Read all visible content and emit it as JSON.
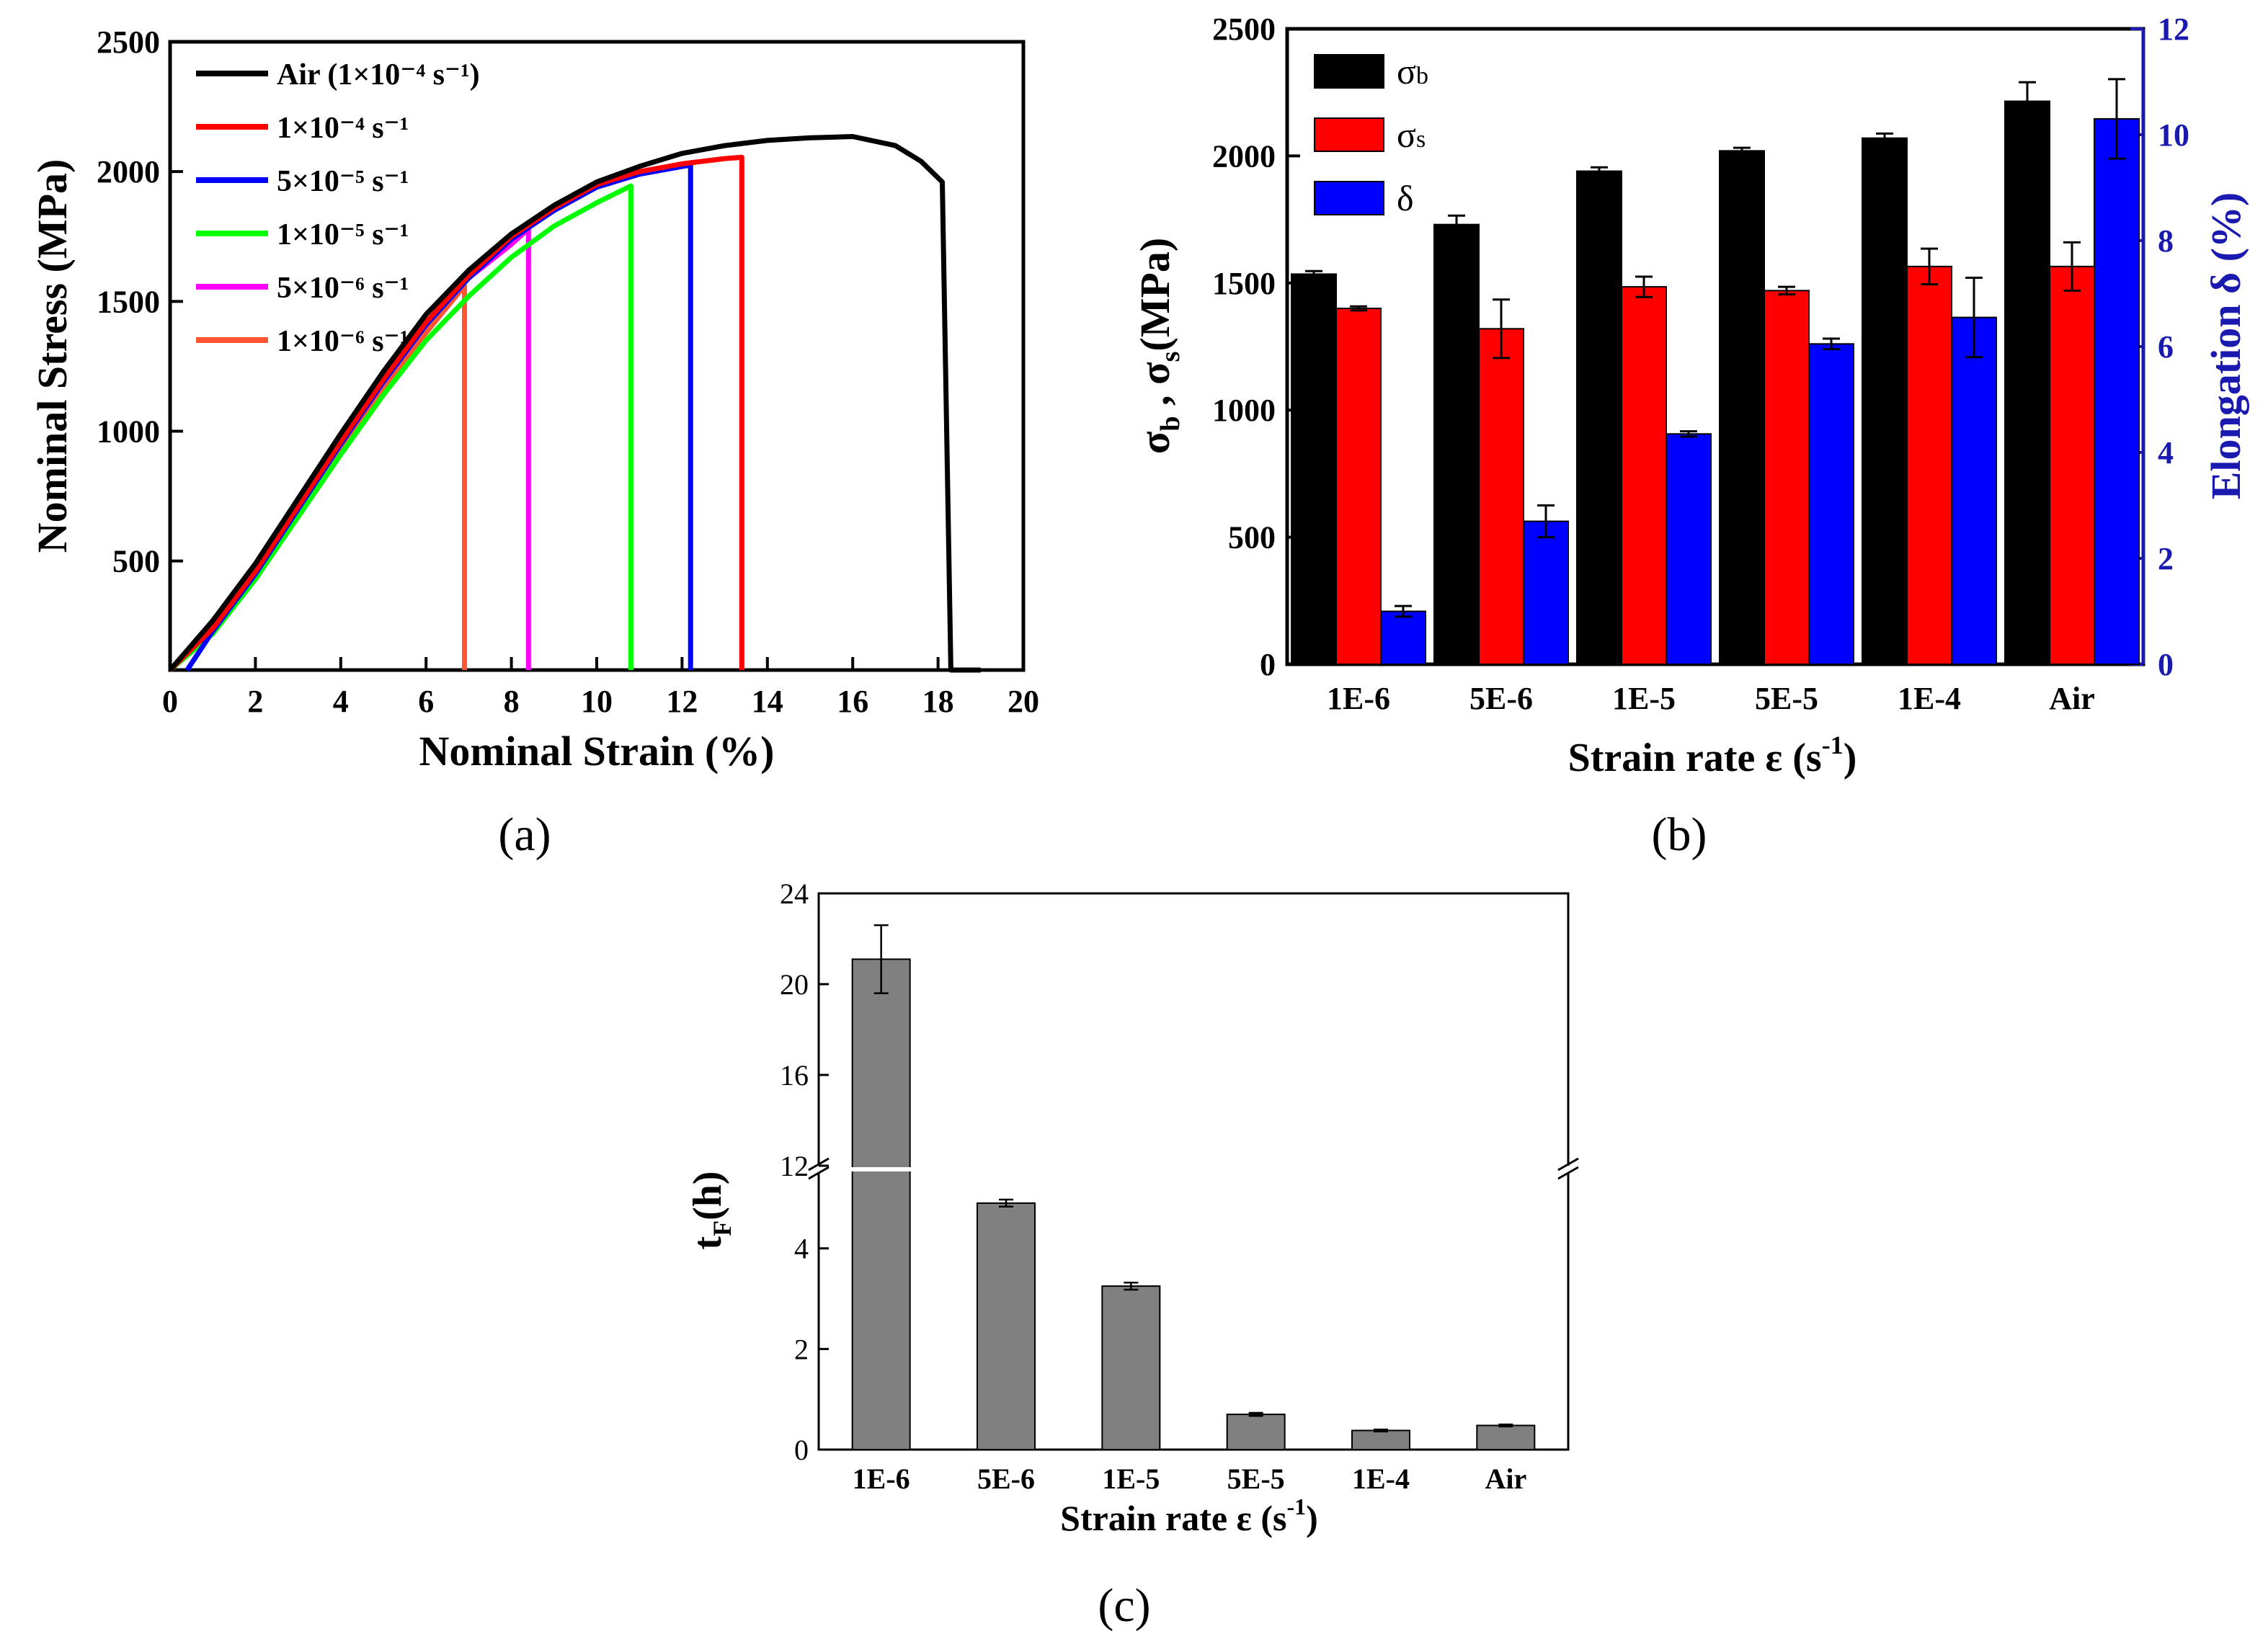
{
  "chart_data": [
    {
      "panel": "(a)",
      "type": "line",
      "xlabel": "Nominal Strain (%)",
      "ylabel": "Nominal Stress (MPa)",
      "xlim": [
        0,
        20
      ],
      "ylim": [
        80,
        2500
      ],
      "xticks": [
        0,
        2,
        4,
        6,
        8,
        10,
        12,
        14,
        16,
        18,
        20
      ],
      "yticks": [
        500,
        1000,
        1500,
        2000,
        2500
      ],
      "legend_position": "top-left",
      "series": [
        {
          "name": "Air (1×10⁻⁴ s⁻¹)",
          "color": "#000000",
          "points": [
            [
              0,
              80
            ],
            [
              1,
              270
            ],
            [
              2,
              490
            ],
            [
              3,
              740
            ],
            [
              4,
              990
            ],
            [
              5,
              1230
            ],
            [
              6,
              1450
            ],
            [
              7,
              1620
            ],
            [
              8,
              1760
            ],
            [
              9,
              1870
            ],
            [
              10,
              1960
            ],
            [
              11,
              2020
            ],
            [
              12,
              2070
            ],
            [
              13,
              2100
            ],
            [
              14,
              2120
            ],
            [
              15,
              2130
            ],
            [
              16,
              2135
            ],
            [
              17,
              2100
            ],
            [
              17.6,
              2040
            ],
            [
              18.1,
              1960
            ],
            [
              18.3,
              80
            ],
            [
              19,
              80
            ]
          ]
        },
        {
          "name": "1×10⁻⁴ s⁻¹",
          "color": "#ff0000",
          "points": [
            [
              0,
              80
            ],
            [
              1,
              240
            ],
            [
              2,
              460
            ],
            [
              3,
              710
            ],
            [
              4,
              960
            ],
            [
              5,
              1200
            ],
            [
              6,
              1420
            ],
            [
              7,
              1600
            ],
            [
              8,
              1750
            ],
            [
              9,
              1860
            ],
            [
              10,
              1950
            ],
            [
              11,
              2000
            ],
            [
              12,
              2030
            ],
            [
              13,
              2050
            ],
            [
              13.4,
              2055
            ],
            [
              13.4,
              80
            ]
          ]
        },
        {
          "name": "5×10⁻⁵ s⁻¹",
          "color": "#0000ff",
          "points": [
            [
              0.4,
              80
            ],
            [
              1,
              230
            ],
            [
              2,
              450
            ],
            [
              3,
              700
            ],
            [
              4,
              950
            ],
            [
              5,
              1190
            ],
            [
              6,
              1410
            ],
            [
              7,
              1590
            ],
            [
              8,
              1740
            ],
            [
              9,
              1850
            ],
            [
              10,
              1940
            ],
            [
              11,
              1990
            ],
            [
              12,
              2020
            ],
            [
              12.2,
              2025
            ],
            [
              12.2,
              80
            ]
          ]
        },
        {
          "name": "1×10⁻⁵ s⁻¹",
          "color": "#00ff00",
          "points": [
            [
              0,
              80
            ],
            [
              1,
              220
            ],
            [
              2,
              430
            ],
            [
              3,
              670
            ],
            [
              4,
              910
            ],
            [
              5,
              1140
            ],
            [
              6,
              1350
            ],
            [
              7,
              1520
            ],
            [
              8,
              1670
            ],
            [
              9,
              1790
            ],
            [
              10,
              1880
            ],
            [
              10.8,
              1945
            ],
            [
              10.8,
              80
            ]
          ]
        },
        {
          "name": "5×10⁻⁶ s⁻¹",
          "color": "#ff00ff",
          "points": [
            [
              0,
              80
            ],
            [
              1,
              235
            ],
            [
              2,
              455
            ],
            [
              3,
              705
            ],
            [
              4,
              955
            ],
            [
              5,
              1195
            ],
            [
              6,
              1415
            ],
            [
              7,
              1590
            ],
            [
              8,
              1720
            ],
            [
              8.4,
              1780
            ],
            [
              8.4,
              80
            ]
          ]
        },
        {
          "name": "1×10⁻⁶ s⁻¹",
          "color": "#ff5533",
          "points": [
            [
              0,
              80
            ],
            [
              1,
              225
            ],
            [
              2,
              440
            ],
            [
              3,
              690
            ],
            [
              4,
              935
            ],
            [
              5,
              1170
            ],
            [
              6,
              1380
            ],
            [
              6.9,
              1560
            ],
            [
              6.9,
              80
            ]
          ]
        }
      ]
    },
    {
      "panel": "(b)",
      "type": "bar",
      "xlabel": "Strain rate ε (s⁻¹)",
      "ylabel_left": "σb , σs(MPa)",
      "ylabel_right": "Elongation δ (%)",
      "categories": [
        "1E-6",
        "5E-6",
        "1E-5",
        "5E-5",
        "1E-4",
        "Air"
      ],
      "ylim_left": [
        0,
        2500
      ],
      "ylim_right": [
        0,
        12
      ],
      "yticks_left": [
        0,
        500,
        1000,
        1500,
        2000,
        2500
      ],
      "yticks_right": [
        0,
        2,
        4,
        6,
        8,
        10,
        12
      ],
      "right_axis_color": "#1a1ab0",
      "legend_position": "top-left",
      "series": [
        {
          "name": "σb",
          "axis": "left",
          "color": "#000000",
          "values": [
            1535,
            1730,
            1940,
            2020,
            2070,
            2215
          ],
          "errors": [
            12,
            35,
            15,
            12,
            18,
            75
          ]
        },
        {
          "name": "σs",
          "axis": "left",
          "color": "#ff0000",
          "values": [
            1400,
            1320,
            1485,
            1470,
            1565,
            1565
          ],
          "errors": [
            8,
            115,
            40,
            15,
            70,
            95
          ]
        },
        {
          "name": "δ",
          "axis": "right",
          "color": "#0000ff",
          "values": [
            1.0,
            2.7,
            4.35,
            6.05,
            6.55,
            10.3
          ],
          "errors": [
            0.1,
            0.3,
            0.05,
            0.1,
            0.75,
            0.75
          ]
        }
      ]
    },
    {
      "panel": "(c)",
      "type": "bar",
      "xlabel": "Strain rate ε (s⁻¹)",
      "ylabel": "tF(h)",
      "categories": [
        "1E-6",
        "5E-6",
        "1E-5",
        "5E-5",
        "1E-4",
        "Air"
      ],
      "axis_break": [
        5.5,
        12
      ],
      "yticks": [
        0,
        2,
        4,
        12,
        16,
        20,
        24
      ],
      "color": "#808080",
      "values": [
        21.1,
        4.9,
        3.25,
        0.7,
        0.38,
        0.48
      ],
      "errors": [
        1.5,
        0.07,
        0.07,
        0.03,
        0.02,
        0.02
      ]
    }
  ],
  "labels": {
    "a_ylabel": "Nominal Stress (MPa)",
    "a_xlabel": "Nominal Strain (%)",
    "b_xlabel_main": "Strain rate ε (s",
    "b_xlabel_sup": "-1",
    "b_xlabel_end": ")",
    "b_ylabel_right": "Elongation δ (%)",
    "c_xlabel_main": "Strain rate ε (s",
    "c_xlabel_sup": "-1",
    "c_xlabel_end": ")",
    "panel_a": "(a)",
    "panel_b": "(b)",
    "panel_c": "(c)"
  }
}
